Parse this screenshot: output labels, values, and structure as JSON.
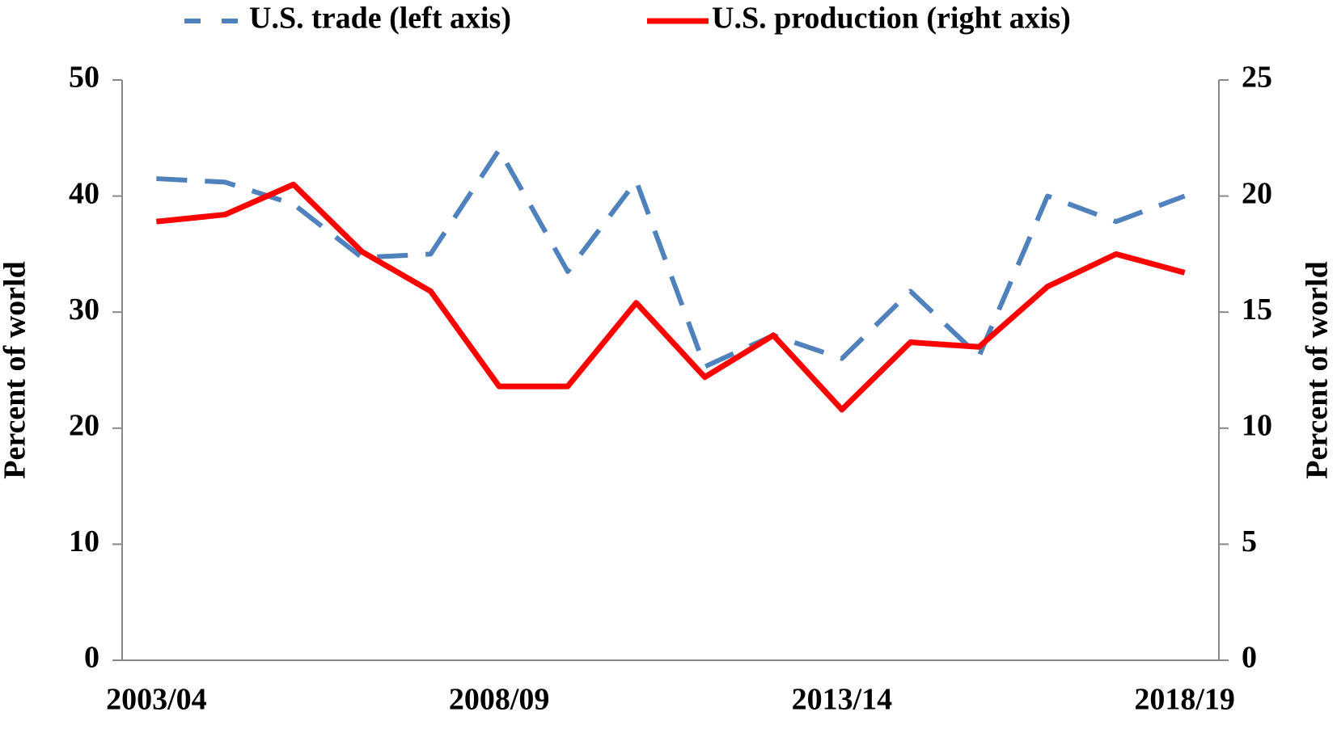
{
  "chart_data": {
    "type": "line",
    "categories": [
      "2003/04",
      null,
      null,
      null,
      null,
      "2008/09",
      null,
      null,
      null,
      null,
      "2013/14",
      null,
      null,
      null,
      null,
      "2018/19"
    ],
    "series": [
      {
        "name": "U.S. trade (left axis)",
        "color": "#4f81bd",
        "dashed": true,
        "values": [
          41.5,
          41.2,
          39.3,
          34.7,
          35.0,
          44.0,
          33.5,
          41.3,
          25.3,
          28.0,
          26.0,
          31.8,
          26.2,
          40.0,
          37.8,
          40.0
        ]
      },
      {
        "name": "U.S. production (right axis)",
        "color": "#ff0000",
        "axis": "y2",
        "values": [
          18.9,
          19.2,
          20.5,
          17.6,
          15.9,
          11.8,
          11.8,
          15.4,
          12.2,
          14.0,
          10.8,
          13.7,
          13.5,
          16.1,
          17.5,
          16.7
        ]
      }
    ],
    "ylabel": "Percent of world",
    "y2label": "Percent of world",
    "ylim": [
      0,
      50
    ],
    "yticks": [
      0,
      10,
      20,
      30,
      40,
      50
    ],
    "y2lim": [
      0,
      25
    ],
    "y2ticks": [
      0,
      5,
      10,
      15,
      20,
      25
    ],
    "legend": "top"
  }
}
